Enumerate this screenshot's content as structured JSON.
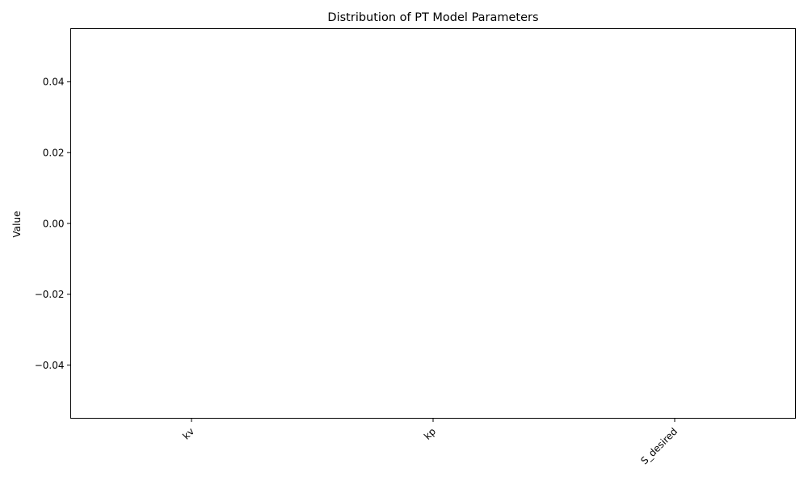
{
  "chart_data": {
    "type": "box",
    "title": "Distribution of PT Model Parameters",
    "xlabel": "",
    "ylabel": "Value",
    "categories": [
      "kv",
      "kp",
      "S_desired"
    ],
    "values": [
      [],
      [],
      []
    ],
    "ylim": [
      -0.055,
      0.055
    ],
    "yticks": [
      -0.04,
      -0.02,
      0.0,
      0.02,
      0.04
    ],
    "ytick_labels": [
      "−0.04",
      "−0.02",
      "0.00",
      "0.02",
      "0.04"
    ],
    "xtick_rotation_deg": 45,
    "grid": false,
    "legend": "none",
    "colors": {
      "axes": "#000000",
      "background": "#ffffff"
    }
  }
}
